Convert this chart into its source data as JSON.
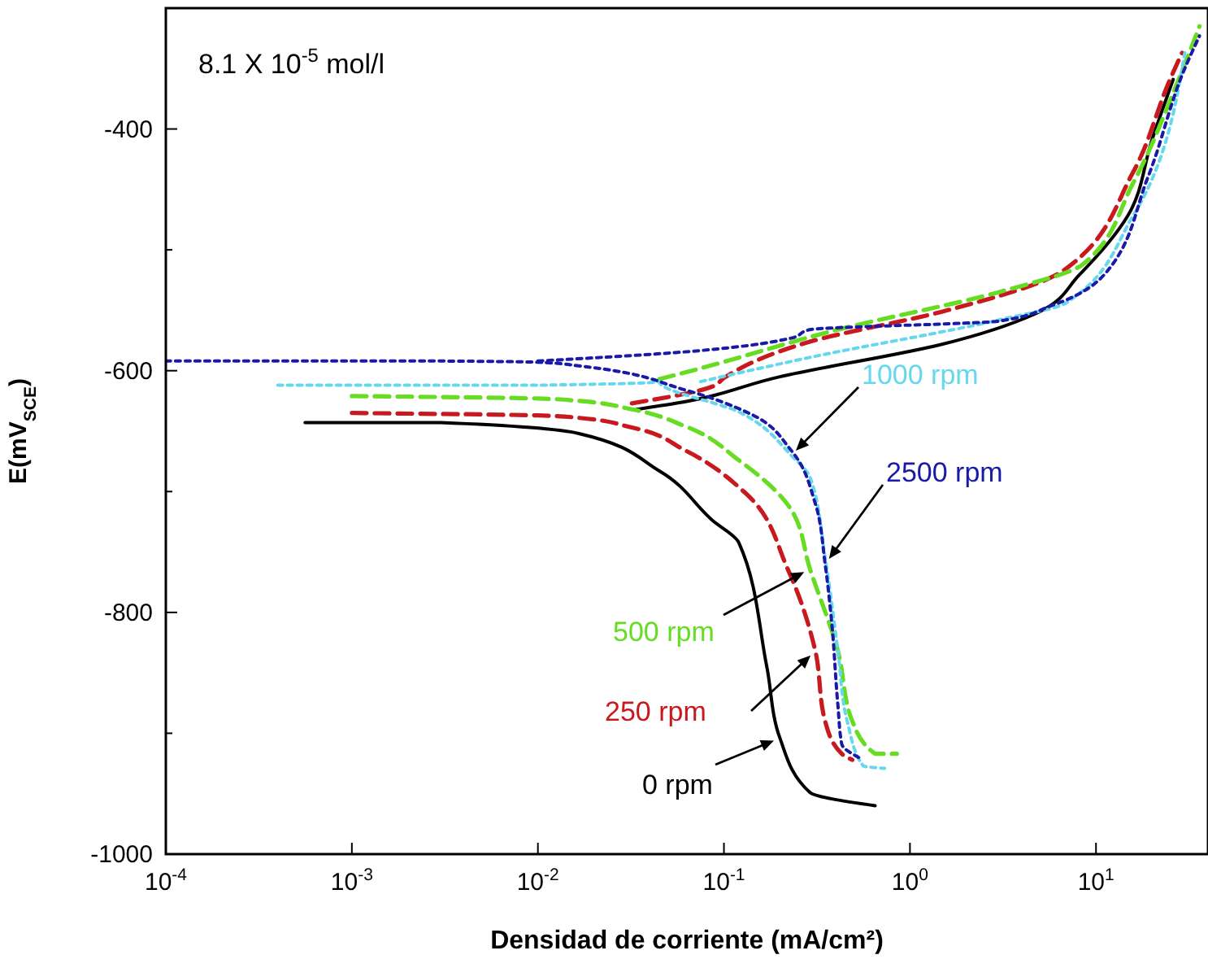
{
  "chart_data": {
    "type": "line",
    "xlabel": "Densidad de corriente (mA/cm²)",
    "ylabel": "E(mV$_{SCE}$)",
    "annotations": [
      "8.1 X 10$^{-5}$ mol/l"
    ],
    "log": "x",
    "xlim": [
      0.0001,
      40
    ],
    "xticks": [
      {
        "value": 0.0001,
        "label": "10$^{-4}$"
      },
      {
        "value": 0.001,
        "label": "10$^{-3}$"
      },
      {
        "value": 0.01,
        "label": "10$^{-2}$"
      },
      {
        "value": 0.1,
        "label": "10$^{-1}$"
      },
      {
        "value": 1,
        "label": "10$^{0}$"
      },
      {
        "value": 10,
        "label": "10$^{1}$"
      }
    ],
    "ylim": [
      -1000,
      -300
    ],
    "yticks": [
      -1000,
      {
        "value": -900,
        "label": null
      },
      -800,
      {
        "value": -700,
        "label": null
      },
      -600,
      {
        "value": -500,
        "label": null
      },
      -400
    ],
    "grid": false,
    "legend": false,
    "series": [
      {
        "name": "0 rpm",
        "color": "#000000",
        "line_style": "solid",
        "x": [
          0.00056,
          0.003,
          0.0166,
          0.045,
          0.087,
          0.12,
          0.17,
          0.2,
          0.29,
          0.65,
          null,
          0.034,
          0.055,
          0.2,
          1.5,
          5,
          8.1,
          14.8,
          20,
          26
        ],
        "values": [
          -643,
          -643,
          -652,
          -683,
          -724,
          -742,
          -845,
          -904,
          -949,
          -960,
          null,
          -632,
          -627,
          -605,
          -578,
          -551,
          -521,
          -472,
          -409,
          -359
        ]
      },
      {
        "name": "250 rpm",
        "color": "#c8191e",
        "line_style": "dashed",
        "x": [
          0.001,
          0.01,
          0.0166,
          0.032,
          0.062,
          0.13,
          0.22,
          0.31,
          0.35,
          0.43,
          0.49,
          null,
          0.032,
          0.087,
          0.1,
          0.29,
          1.5,
          6.7,
          15.8,
          25,
          29
        ],
        "values": [
          -635,
          -637,
          -639,
          -647,
          -666,
          -701,
          -764,
          -832,
          -890,
          -917,
          -922,
          null,
          -627,
          -613,
          -606,
          -576,
          -551,
          -517,
          -436,
          -359,
          -337
        ]
      },
      {
        "name": "500 rpm",
        "color": "#66dd22",
        "line_style": "dashed",
        "x": [
          0.001,
          0.01,
          0.0166,
          0.032,
          0.062,
          0.12,
          0.23,
          0.29,
          0.41,
          0.49,
          0.65,
          0.85,
          null,
          0.045,
          0.075,
          0.41,
          3,
          8.5,
          15.8,
          27,
          36
        ],
        "values": [
          -621,
          -623,
          -625,
          -632,
          -646,
          -674,
          -715,
          -764,
          -832,
          -890,
          -917,
          -917,
          null,
          -607,
          -598,
          -566,
          -535,
          -512,
          -445,
          -364,
          -315
        ]
      },
      {
        "name": "1000 rpm",
        "color": "#66d8ee",
        "line_style": "dotted",
        "x": [
          0.0004,
          0.01,
          0.045,
          0.12,
          0.23,
          0.29,
          0.35,
          0.41,
          0.46,
          0.56,
          0.73,
          null,
          0.075,
          0.29,
          3,
          6.9,
          15.8,
          30
        ],
        "values": [
          -612,
          -612,
          -609,
          -634,
          -670,
          -688,
          -755,
          -832,
          -890,
          -927,
          -929,
          null,
          -609,
          -589,
          -558,
          -544,
          -472,
          -337
        ]
      },
      {
        "name": "2500 rpm",
        "color": "#1a1aa8",
        "line_style": "dotted",
        "x": [
          0.0001,
          0.003,
          0.01,
          0.0166,
          0.062,
          0.14,
          0.23,
          0.31,
          0.35,
          0.38,
          0.41,
          0.43,
          0.53,
          null,
          0.01,
          0.055,
          0.23,
          0.29,
          3,
          5.8,
          11,
          19,
          30,
          36
        ],
        "values": [
          -592,
          -592,
          -593,
          -596,
          -616,
          -636,
          -666,
          -710,
          -760,
          -809,
          -877,
          -909,
          -920,
          null,
          -592,
          -585,
          -573,
          -566,
          -559,
          -546,
          -521,
          -440,
          -350,
          -323
        ]
      }
    ]
  }
}
